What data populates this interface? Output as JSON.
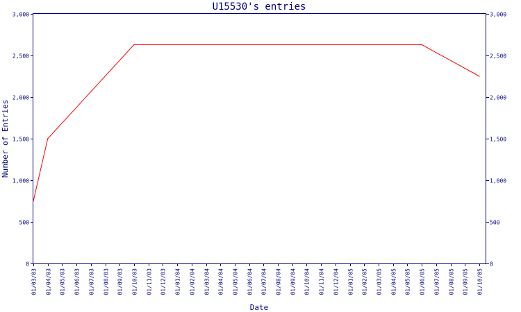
{
  "chart_data": {
    "type": "line",
    "title": "U15530's entries",
    "xlabel": "Date",
    "ylabel": "Number of Entries",
    "ylim": [
      0,
      3000
    ],
    "y_ticks": [
      0,
      500,
      1000,
      1500,
      2000,
      2500,
      3000
    ],
    "y_tick_labels": [
      "0",
      "500",
      "1,000",
      "1,500",
      "2,000",
      "2,500",
      "3,000"
    ],
    "categories": [
      "01/03/03",
      "01/04/03",
      "01/05/03",
      "01/06/03",
      "01/07/03",
      "01/08/03",
      "01/09/03",
      "01/10/03",
      "01/11/03",
      "01/12/03",
      "01/01/04",
      "01/02/04",
      "01/03/04",
      "01/04/04",
      "01/05/04",
      "01/06/04",
      "01/07/04",
      "01/08/04",
      "01/09/04",
      "01/10/04",
      "01/11/04",
      "01/12/04",
      "01/01/05",
      "01/02/05",
      "01/03/05",
      "01/04/05",
      "01/05/05",
      "01/06/05",
      "01/07/05",
      "01/08/05",
      "01/09/05",
      "01/10/05"
    ],
    "series": [
      {
        "color": "#ff0000",
        "points": [
          {
            "x": "01/03/03",
            "y": 750
          },
          {
            "x": "01/04/03",
            "y": 1500
          },
          {
            "x": "01/10/03",
            "y": 2630
          },
          {
            "x": "01/06/05",
            "y": 2630
          },
          {
            "x": "01/10/05",
            "y": 2250
          }
        ]
      }
    ],
    "grid": false,
    "right_axis": true
  }
}
